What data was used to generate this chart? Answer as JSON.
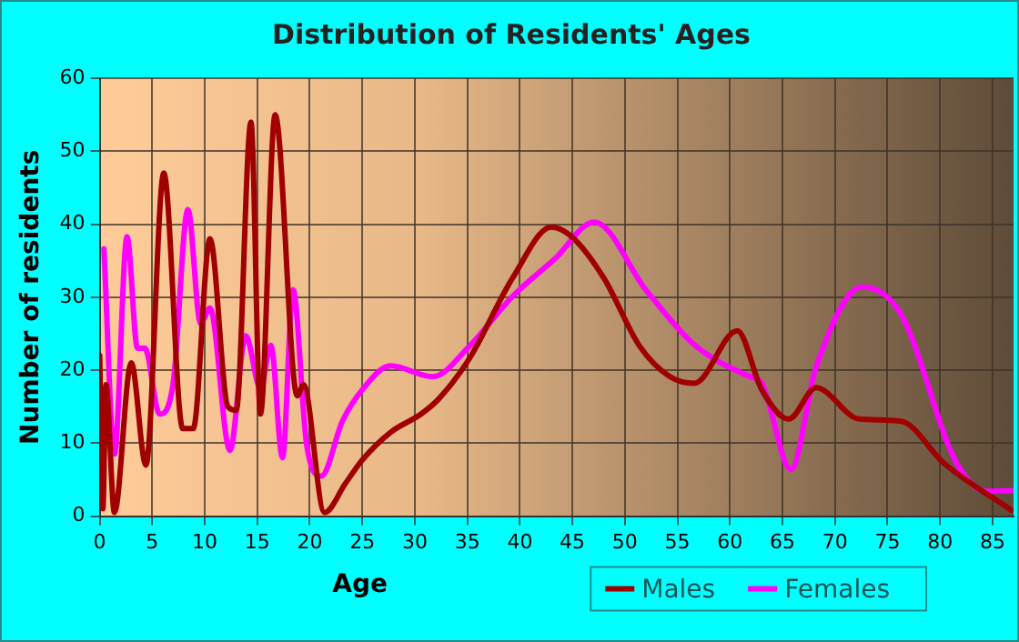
{
  "chart_data": {
    "type": "line",
    "title": "Distribution of Residents' Ages",
    "xlabel": "Age",
    "ylabel": "Number of residents",
    "xlim": [
      0,
      87
    ],
    "xticks": [
      0,
      5,
      10,
      15,
      20,
      25,
      30,
      35,
      40,
      45,
      50,
      55,
      60,
      65,
      70,
      75,
      80,
      85
    ],
    "ylim": [
      0,
      60
    ],
    "yticks": [
      0,
      10,
      20,
      30,
      40,
      50,
      60
    ],
    "grid": true,
    "legend": "bottom right",
    "marker": "none",
    "line_style": "solid",
    "series": [
      {
        "name": "Males",
        "color": "#a00000",
        "x": [
          0,
          0.3,
          0.6,
          1.4,
          3,
          4.4,
          6.1,
          7.9,
          8.9,
          10.5,
          12.2,
          13,
          14.4,
          15.3,
          16.7,
          18.8,
          19.4,
          21.4,
          23.4,
          25,
          27.7,
          30.6,
          32.3,
          35.2,
          39.3,
          43,
          45,
          48,
          51.4,
          54.3,
          56.6,
          60.7,
          63,
          65.6,
          68.2,
          72.3,
          76.3,
          80.4,
          86.8
        ],
        "values": [
          22,
          1,
          18,
          0.5,
          21,
          7,
          47,
          12,
          12,
          38,
          15,
          14.5,
          54,
          14,
          55,
          16.5,
          18,
          0.5,
          4.5,
          7.7,
          11.5,
          14,
          16.1,
          21.6,
          32.6,
          39.6,
          38.2,
          32.6,
          23.3,
          19.1,
          18.2,
          25.4,
          17.4,
          13.3,
          17.6,
          13.3,
          13,
          7.2,
          0.8
        ]
      },
      {
        "name": "Females",
        "color": "#ff00ff",
        "x": [
          0.4,
          1.4,
          2.6,
          3.6,
          4.3,
          5.7,
          7,
          8.4,
          9.6,
          10.5,
          12.4,
          13.9,
          15.3,
          16.3,
          17.4,
          18.4,
          19.7,
          21.1,
          23.1,
          25.1,
          27.7,
          31.7,
          35.2,
          39.3,
          43.3,
          47.1,
          52,
          56.6,
          61.9,
          63,
          65.8,
          68.2,
          72.6,
          76.3,
          81.6,
          84.5,
          86.8
        ],
        "values": [
          36.6,
          8.5,
          38.3,
          23,
          23,
          14,
          18.3,
          42,
          26.4,
          28.5,
          9,
          24.7,
          17.5,
          23.4,
          8,
          31,
          9.8,
          5.5,
          13,
          17.5,
          20.6,
          19.1,
          23.3,
          30.1,
          35.2,
          40.3,
          31,
          23.5,
          19.1,
          18.3,
          6.4,
          20.4,
          31.4,
          27.6,
          7.2,
          3.4,
          3.5
        ]
      }
    ]
  }
}
